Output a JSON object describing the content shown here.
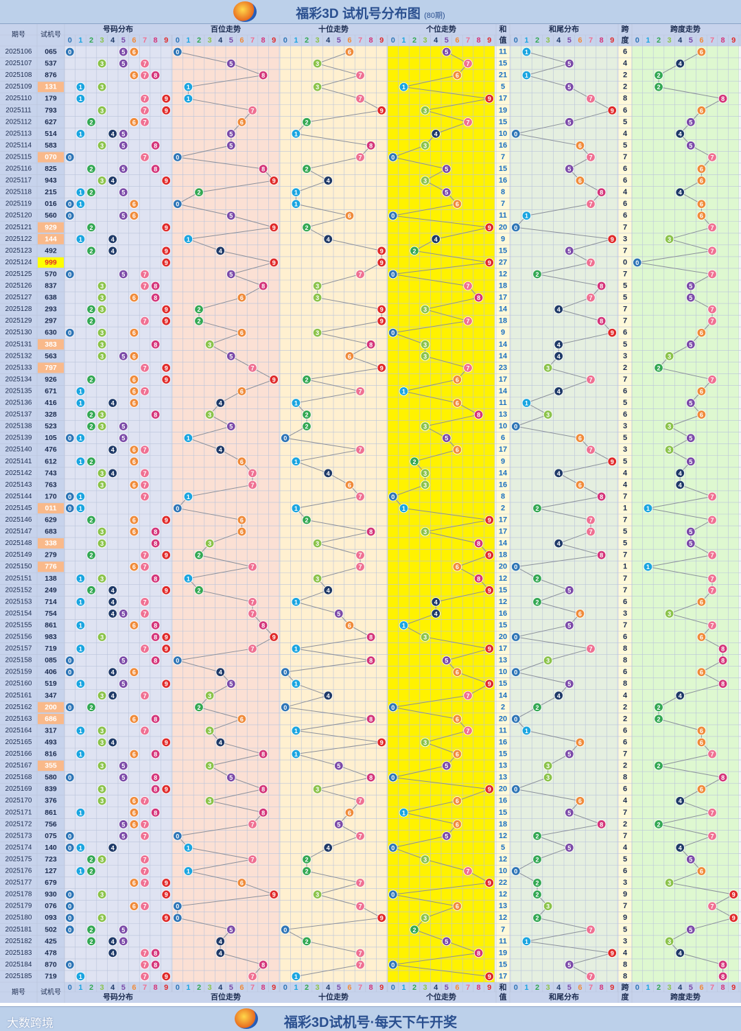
{
  "title": {
    "main": "福彩3D 试机号分布图",
    "sub": "(80期)"
  },
  "footer": {
    "slogan": "福彩3D试机号·每天下午开奖",
    "brand": "大数跨境"
  },
  "headers": {
    "period": "期号",
    "number": "试机号",
    "dist": "号码分布",
    "hundreds": "百位走势",
    "tens": "十位走势",
    "units": "个位走势",
    "sum_top": "和",
    "sum_bottom": "值",
    "tail": "和尾分布",
    "span_top": "跨",
    "span_bottom": "度",
    "span_trend": "跨度走势",
    "digits": [
      "0",
      "1",
      "2",
      "3",
      "4",
      "5",
      "6",
      "7",
      "8",
      "9"
    ]
  },
  "colors": {
    "digit": [
      "#2e75b6",
      "#1aa5e0",
      "#33a853",
      "#8bc34a",
      "#1f3a68",
      "#7b4aa8",
      "#f08b3a",
      "#ef7092",
      "#d4357a",
      "#e02a2a"
    ],
    "dist_bg": "#dfe3f2",
    "hundreds_bg": "#fbe0d4",
    "tens_bg": "#fff0d0",
    "units_bg": "#fff200",
    "sum_bg": "#fef9d9",
    "tail_bg": "#e5efe0",
    "span_bg": "#def8d0",
    "header_bg": "#c7d3ec",
    "highlight_pair": "#f9b98a",
    "highlight_triple": "#ffff00",
    "title_text": "#2a4f8f"
  },
  "chart_data": {
    "type": "table",
    "draws": [
      {
        "period": "2025106",
        "number": "065",
        "sum": 11,
        "span": 6
      },
      {
        "period": "2025107",
        "number": "537",
        "sum": 15,
        "span": 4
      },
      {
        "period": "2025108",
        "number": "876",
        "sum": 21,
        "span": 2
      },
      {
        "period": "2025109",
        "number": "131",
        "sum": 5,
        "span": 2
      },
      {
        "period": "2025110",
        "number": "179",
        "sum": 17,
        "span": 8
      },
      {
        "period": "2025111",
        "number": "793",
        "sum": 19,
        "span": 6
      },
      {
        "period": "2025112",
        "number": "627",
        "sum": 15,
        "span": 5
      },
      {
        "period": "2025113",
        "number": "514",
        "sum": 10,
        "span": 4
      },
      {
        "period": "2025114",
        "number": "583",
        "sum": 16,
        "span": 5
      },
      {
        "period": "2025115",
        "number": "070",
        "sum": 7,
        "span": 7
      },
      {
        "period": "2025116",
        "number": "825",
        "sum": 15,
        "span": 6
      },
      {
        "period": "2025117",
        "number": "943",
        "sum": 16,
        "span": 6
      },
      {
        "period": "2025118",
        "number": "215",
        "sum": 8,
        "span": 4
      },
      {
        "period": "2025119",
        "number": "016",
        "sum": 7,
        "span": 6
      },
      {
        "period": "2025120",
        "number": "560",
        "sum": 11,
        "span": 6
      },
      {
        "period": "2025121",
        "number": "929",
        "sum": 20,
        "span": 7
      },
      {
        "period": "2025122",
        "number": "144",
        "sum": 9,
        "span": 3
      },
      {
        "period": "2025123",
        "number": "492",
        "sum": 15,
        "span": 7
      },
      {
        "period": "2025124",
        "number": "999",
        "sum": 27,
        "span": 0
      },
      {
        "period": "2025125",
        "number": "570",
        "sum": 12,
        "span": 7
      },
      {
        "period": "2025126",
        "number": "837",
        "sum": 18,
        "span": 5
      },
      {
        "period": "2025127",
        "number": "638",
        "sum": 17,
        "span": 5
      },
      {
        "period": "2025128",
        "number": "293",
        "sum": 14,
        "span": 7
      },
      {
        "period": "2025129",
        "number": "297",
        "sum": 18,
        "span": 7
      },
      {
        "period": "2025130",
        "number": "630",
        "sum": 9,
        "span": 6
      },
      {
        "period": "2025131",
        "number": "383",
        "sum": 14,
        "span": 5
      },
      {
        "period": "2025132",
        "number": "563",
        "sum": 14,
        "span": 3
      },
      {
        "period": "2025133",
        "number": "797",
        "sum": 23,
        "span": 2
      },
      {
        "period": "2025134",
        "number": "926",
        "sum": 17,
        "span": 7
      },
      {
        "period": "2025135",
        "number": "671",
        "sum": 14,
        "span": 6
      },
      {
        "period": "2025136",
        "number": "416",
        "sum": 11,
        "span": 5
      },
      {
        "period": "2025137",
        "number": "328",
        "sum": 13,
        "span": 6
      },
      {
        "period": "2025138",
        "number": "523",
        "sum": 10,
        "span": 3
      },
      {
        "period": "2025139",
        "number": "105",
        "sum": 6,
        "span": 5
      },
      {
        "period": "2025140",
        "number": "476",
        "sum": 17,
        "span": 3
      },
      {
        "period": "2025141",
        "number": "612",
        "sum": 9,
        "span": 5
      },
      {
        "period": "2025142",
        "number": "743",
        "sum": 14,
        "span": 4
      },
      {
        "period": "2025143",
        "number": "763",
        "sum": 16,
        "span": 4
      },
      {
        "period": "2025144",
        "number": "170",
        "sum": 8,
        "span": 7
      },
      {
        "period": "2025145",
        "number": "011",
        "sum": 2,
        "span": 1
      },
      {
        "period": "2025146",
        "number": "629",
        "sum": 17,
        "span": 7
      },
      {
        "period": "2025147",
        "number": "683",
        "sum": 17,
        "span": 5
      },
      {
        "period": "2025148",
        "number": "338",
        "sum": 14,
        "span": 5
      },
      {
        "period": "2025149",
        "number": "279",
        "sum": 18,
        "span": 7
      },
      {
        "period": "2025150",
        "number": "776",
        "sum": 20,
        "span": 1
      },
      {
        "period": "2025151",
        "number": "138",
        "sum": 12,
        "span": 7
      },
      {
        "period": "2025152",
        "number": "249",
        "sum": 15,
        "span": 7
      },
      {
        "period": "2025153",
        "number": "714",
        "sum": 12,
        "span": 6
      },
      {
        "period": "2025154",
        "number": "754",
        "sum": 16,
        "span": 3
      },
      {
        "period": "2025155",
        "number": "861",
        "sum": 15,
        "span": 7
      },
      {
        "period": "2025156",
        "number": "983",
        "sum": 20,
        "span": 6
      },
      {
        "period": "2025157",
        "number": "719",
        "sum": 17,
        "span": 8
      },
      {
        "period": "2025158",
        "number": "085",
        "sum": 13,
        "span": 8
      },
      {
        "period": "2025159",
        "number": "406",
        "sum": 10,
        "span": 6
      },
      {
        "period": "2025160",
        "number": "519",
        "sum": 15,
        "span": 8
      },
      {
        "period": "2025161",
        "number": "347",
        "sum": 14,
        "span": 4
      },
      {
        "period": "2025162",
        "number": "200",
        "sum": 2,
        "span": 2
      },
      {
        "period": "2025163",
        "number": "686",
        "sum": 20,
        "span": 2
      },
      {
        "period": "2025164",
        "number": "317",
        "sum": 11,
        "span": 6
      },
      {
        "period": "2025165",
        "number": "493",
        "sum": 16,
        "span": 6
      },
      {
        "period": "2025166",
        "number": "816",
        "sum": 15,
        "span": 7
      },
      {
        "period": "2025167",
        "number": "355",
        "sum": 13,
        "span": 2
      },
      {
        "period": "2025168",
        "number": "580",
        "sum": 13,
        "span": 8
      },
      {
        "period": "2025169",
        "number": "839",
        "sum": 20,
        "span": 6
      },
      {
        "period": "2025170",
        "number": "376",
        "sum": 16,
        "span": 4
      },
      {
        "period": "2025171",
        "number": "861",
        "sum": 15,
        "span": 7
      },
      {
        "period": "2025172",
        "number": "756",
        "sum": 18,
        "span": 2
      },
      {
        "period": "2025173",
        "number": "075",
        "sum": 12,
        "span": 7
      },
      {
        "period": "2025174",
        "number": "140",
        "sum": 5,
        "span": 4
      },
      {
        "period": "2025175",
        "number": "723",
        "sum": 12,
        "span": 5
      },
      {
        "period": "2025176",
        "number": "127",
        "sum": 10,
        "span": 6
      },
      {
        "period": "2025177",
        "number": "679",
        "sum": 22,
        "span": 3
      },
      {
        "period": "2025178",
        "number": "930",
        "sum": 12,
        "span": 9
      },
      {
        "period": "2025179",
        "number": "076",
        "sum": 13,
        "span": 7
      },
      {
        "period": "2025180",
        "number": "093",
        "sum": 12,
        "span": 9
      },
      {
        "period": "2025181",
        "number": "502",
        "sum": 7,
        "span": 5
      },
      {
        "period": "2025182",
        "number": "425",
        "sum": 11,
        "span": 3
      },
      {
        "period": "2025183",
        "number": "478",
        "sum": 19,
        "span": 4
      },
      {
        "period": "2025184",
        "number": "870",
        "sum": 15,
        "span": 8
      },
      {
        "period": "2025185",
        "number": "719",
        "sum": 17,
        "span": 8
      }
    ]
  }
}
